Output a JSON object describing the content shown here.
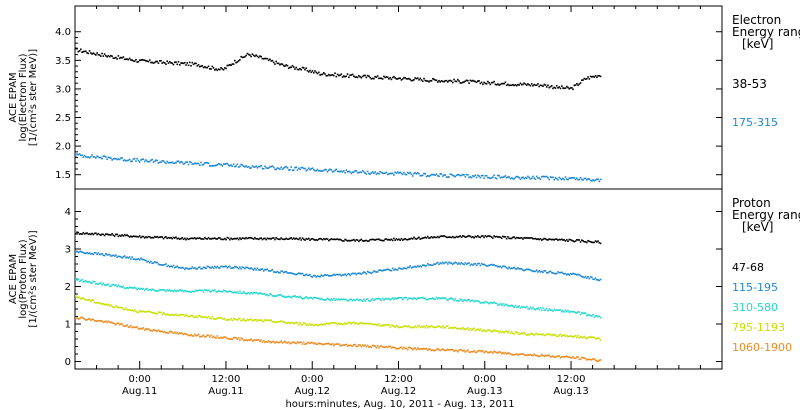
{
  "xlabel": "hours:minutes, Aug. 10, 2011 - Aug. 13, 2011",
  "x_ticks": [
    {
      "hour": 24,
      "label": "0:00",
      "date": "Aug.11"
    },
    {
      "hour": 36,
      "label": "12:00",
      "date": "Aug.11"
    },
    {
      "hour": 48,
      "label": "0:00",
      "date": "Aug.12"
    },
    {
      "hour": 60,
      "label": "12:00",
      "date": "Aug.12"
    },
    {
      "hour": 72,
      "label": "0:00",
      "date": "Aug.13"
    },
    {
      "hour": 84,
      "label": "12:00",
      "date": "Aug.13"
    }
  ],
  "chart_data": [
    {
      "type": "scatter",
      "name": "electron",
      "ylabel_lines": [
        "ACE EPAM",
        "log(Electron Flux)",
        "[1/(cm²s ster MeV)]"
      ],
      "xlim": [
        15,
        105
      ],
      "ylim": [
        1.25,
        4.45
      ],
      "yticks": [
        1.5,
        2.0,
        2.5,
        3.0,
        3.5,
        4.0
      ],
      "ytick_labels": [
        "1.5",
        "2.0",
        "2.5",
        "3.0",
        "3.5",
        "4.0"
      ],
      "legend": {
        "title_lines": [
          "Electron",
          "Energy range",
          "[keV]"
        ],
        "entries": [
          {
            "label": "38-53",
            "color": "#000000"
          },
          {
            "label": "175-315",
            "color": "#1e88d8"
          }
        ]
      },
      "series": [
        {
          "name": "38-53",
          "color": "#000000",
          "x": [
            15,
            17,
            20,
            24,
            28,
            32,
            34,
            35.5,
            37,
            39,
            41,
            44,
            47,
            49,
            52,
            56,
            60,
            64,
            68,
            72,
            76,
            80,
            82,
            84,
            86,
            88
          ],
          "y": [
            3.7,
            3.65,
            3.58,
            3.5,
            3.47,
            3.44,
            3.38,
            3.35,
            3.48,
            3.62,
            3.55,
            3.42,
            3.35,
            3.28,
            3.25,
            3.22,
            3.2,
            3.17,
            3.15,
            3.12,
            3.1,
            3.08,
            3.04,
            3.02,
            3.2,
            3.26
          ]
        },
        {
          "name": "175-315",
          "color": "#1e88d8",
          "x": [
            15,
            20,
            24,
            30,
            36,
            42,
            48,
            54,
            60,
            66,
            72,
            78,
            84,
            88
          ],
          "y": [
            1.86,
            1.8,
            1.76,
            1.72,
            1.68,
            1.64,
            1.6,
            1.56,
            1.53,
            1.5,
            1.48,
            1.46,
            1.45,
            1.42
          ]
        }
      ]
    },
    {
      "type": "scatter",
      "name": "proton",
      "ylabel_lines": [
        "ACE EPAM",
        "log(Proton Flux)",
        "[1/(cm²s ster MeV)]"
      ],
      "xlim": [
        15,
        105
      ],
      "ylim": [
        -0.2,
        4.6
      ],
      "yticks": [
        0,
        1,
        2,
        3,
        4
      ],
      "ytick_labels": [
        "0",
        "1",
        "2",
        "3",
        "4"
      ],
      "legend": {
        "title_lines": [
          "Proton",
          "Energy range",
          "[keV]"
        ],
        "entries": [
          {
            "label": "47-68",
            "color": "#000000"
          },
          {
            "label": "115-195",
            "color": "#1e88d8"
          },
          {
            "label": "310-580",
            "color": "#22d8cc"
          },
          {
            "label": "795-1193",
            "color": "#c8e000"
          },
          {
            "label": "1060-1900",
            "color": "#f08a1e"
          }
        ]
      },
      "series": [
        {
          "name": "47-68",
          "color": "#000000",
          "x": [
            15,
            20,
            24,
            30,
            36,
            42,
            48,
            54,
            60,
            66,
            72,
            78,
            84,
            88
          ],
          "y": [
            3.45,
            3.4,
            3.35,
            3.3,
            3.3,
            3.3,
            3.28,
            3.25,
            3.28,
            3.35,
            3.35,
            3.3,
            3.25,
            3.2
          ]
        },
        {
          "name": "115-195",
          "color": "#1e88d8",
          "x": [
            15,
            20,
            24,
            26,
            30,
            36,
            42,
            48,
            54,
            60,
            66,
            72,
            78,
            84,
            88
          ],
          "y": [
            2.95,
            2.85,
            2.75,
            2.65,
            2.5,
            2.55,
            2.45,
            2.3,
            2.35,
            2.5,
            2.65,
            2.6,
            2.45,
            2.35,
            2.2
          ]
        },
        {
          "name": "310-580",
          "color": "#22d8cc",
          "x": [
            15,
            20,
            24,
            30,
            36,
            42,
            48,
            54,
            60,
            66,
            72,
            78,
            84,
            88
          ],
          "y": [
            2.2,
            2.05,
            1.95,
            1.9,
            1.9,
            1.8,
            1.7,
            1.65,
            1.7,
            1.7,
            1.6,
            1.45,
            1.35,
            1.2
          ]
        },
        {
          "name": "795-1193",
          "color": "#c8e000",
          "x": [
            15,
            20,
            24,
            30,
            36,
            42,
            48,
            54,
            60,
            66,
            72,
            78,
            84,
            88
          ],
          "y": [
            1.75,
            1.5,
            1.35,
            1.25,
            1.15,
            1.1,
            1.0,
            1.05,
            0.95,
            0.95,
            0.85,
            0.75,
            0.7,
            0.62
          ]
        },
        {
          "name": "1060-1900",
          "color": "#f08a1e",
          "x": [
            15,
            20,
            24,
            30,
            36,
            42,
            48,
            54,
            60,
            66,
            72,
            78,
            84,
            88
          ],
          "y": [
            1.2,
            1.05,
            0.9,
            0.75,
            0.65,
            0.55,
            0.5,
            0.45,
            0.38,
            0.33,
            0.28,
            0.2,
            0.13,
            0.05
          ]
        }
      ]
    }
  ]
}
